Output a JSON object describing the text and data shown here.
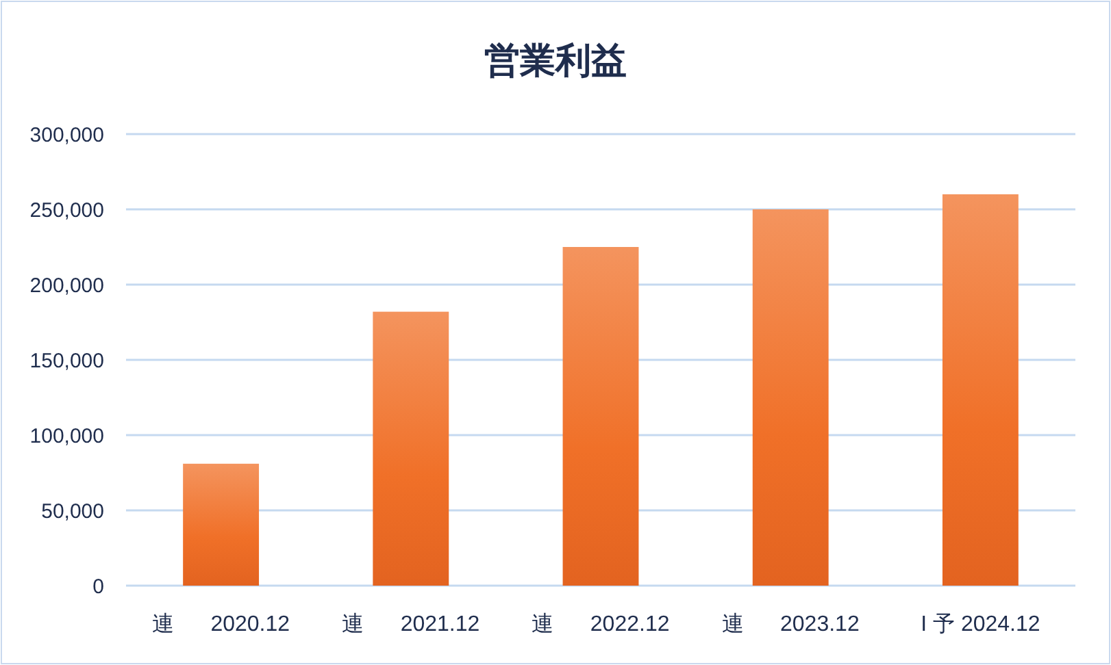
{
  "chart_data": {
    "type": "bar",
    "title": "営業利益",
    "categories": [
      "連      2020.12",
      "連      2021.12",
      "連      2022.12",
      "連      2023.12",
      "I 予 2024.12"
    ],
    "values": [
      81000,
      182000,
      225000,
      250000,
      260000
    ],
    "color": "#f07028",
    "ylim": [
      0,
      300000
    ],
    "yticks": [
      {
        "value": 0,
        "label": "0"
      },
      {
        "value": 50000,
        "label": "50,000"
      },
      {
        "value": 100000,
        "label": "100,000"
      },
      {
        "value": 150000,
        "label": "150,000"
      },
      {
        "value": 200000,
        "label": "200,000"
      },
      {
        "value": 250000,
        "label": "250,000"
      },
      {
        "value": 300000,
        "label": "300,000"
      }
    ],
    "grid": true
  }
}
